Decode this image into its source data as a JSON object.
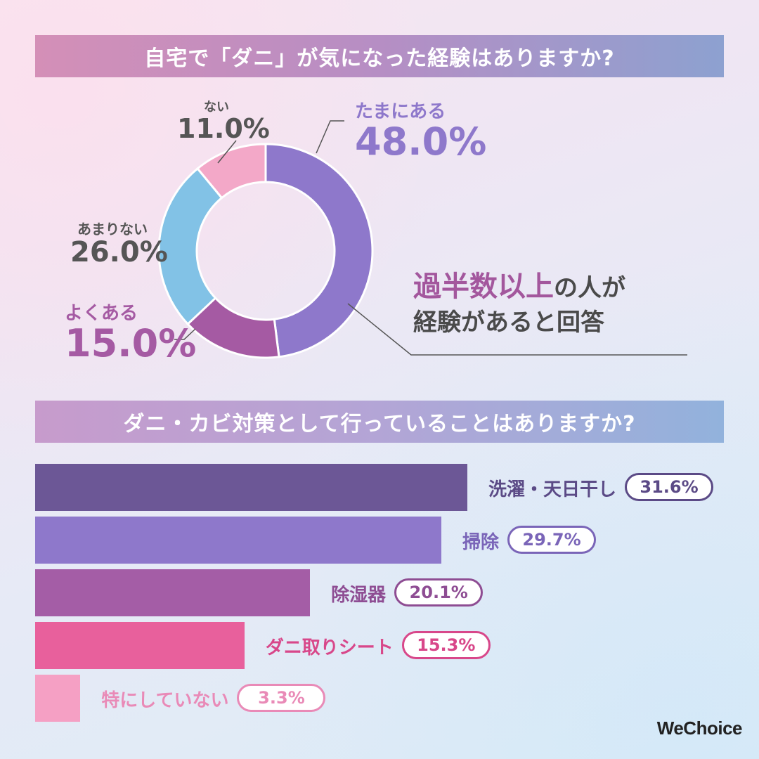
{
  "brand": "WeChoice",
  "section1": {
    "title": "自宅で「ダニ」が気になった経験はありますか?",
    "callout_highlight": "過半数以上",
    "callout_rest1": "の人が",
    "callout_line2": "経験があると回答"
  },
  "section2": {
    "title": "ダニ・カビ対策として行っていることはありますか?"
  },
  "chart_data": [
    {
      "type": "pie",
      "categories": [
        "たまにある",
        "よくある",
        "あまりない",
        "ない"
      ],
      "values": [
        48.0,
        15.0,
        26.0,
        11.0
      ],
      "value_labels": [
        "48.0%",
        "15.0%",
        "26.0%",
        "11.0%"
      ],
      "colors": [
        "#8e78cb",
        "#a55aa3",
        "#82c2e6",
        "#f3a8c8"
      ],
      "title": "自宅で「ダニ」が気になった経験はありますか?",
      "unit": "%"
    },
    {
      "type": "bar",
      "categories": [
        "洗濯・天日干し",
        "掃除",
        "除湿器",
        "ダニ取りシート",
        "特にしていない"
      ],
      "values": [
        31.6,
        29.7,
        20.1,
        15.3,
        3.3
      ],
      "value_labels": [
        "31.6%",
        "29.7%",
        "20.1%",
        "15.3%",
        "3.3%"
      ],
      "colors": [
        "#6c5796",
        "#8e78cb",
        "#a45da6",
        "#e8609c",
        "#f5a0c4"
      ],
      "text_colors": [
        "#5b4a86",
        "#7a65b8",
        "#8e4d93",
        "#d8478a",
        "#e98ab7"
      ],
      "title": "ダニ・カビ対策として行っていることはありますか?",
      "unit": "%"
    }
  ]
}
